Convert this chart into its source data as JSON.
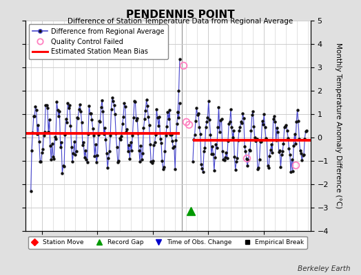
{
  "title": "PENDENNIS POINT",
  "subtitle": "Difference of Station Temperature Data from Regional Average",
  "ylabel": "Monthly Temperature Anomaly Difference (°C)",
  "xlim": [
    1983.5,
    2009.2
  ],
  "ylim": [
    -4,
    5
  ],
  "yticks": [
    -4,
    -3,
    -2,
    -1,
    0,
    1,
    2,
    3,
    4,
    5
  ],
  "xticks": [
    1985,
    1990,
    1995,
    2000,
    2005
  ],
  "bg_color": "#e0e0e0",
  "plot_bg_color": "#ffffff",
  "line_color": "#4444cc",
  "dot_color": "#111111",
  "bias1_y": 0.18,
  "bias1_xstart": 1983.5,
  "bias1_xend": 1997.4,
  "bias2_y": -0.12,
  "bias2_xstart": 1998.6,
  "bias2_xend": 2009.2,
  "gap_x": 1997.6,
  "gap_marker_x": 1998.4,
  "gap_marker_y": -3.15,
  "qc_fail_x": [
    1997.75,
    1998.0,
    1998.25,
    2003.42,
    2007.83
  ],
  "qc_fail_y": [
    3.1,
    0.67,
    0.57,
    -0.87,
    -1.17
  ],
  "berkeley_earth_text": "Berkeley Earth",
  "grid_color": "#cccccc",
  "seg1_start_year": 1984.0,
  "seg1_end_year": 1997.5,
  "seg2_start_year": 1998.6,
  "seg2_end_year": 2008.92,
  "seg1_amplitude": 1.15,
  "seg1_bias": 0.18,
  "seg2_amplitude": 0.95,
  "seg2_bias": -0.12
}
